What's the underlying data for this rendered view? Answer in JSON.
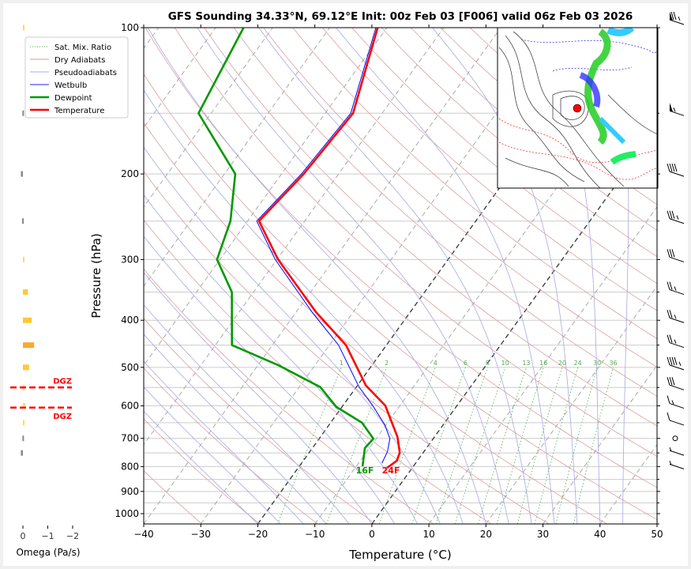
{
  "chart_data": {
    "type": "line",
    "title": "GFS Sounding 34.33°N, 69.12°E Init: 00z Feb 03 [F006] valid 06z Feb 03 2026",
    "xlabel": "Temperature (°C)",
    "ylabel": "Pressure (hPa)",
    "xlim": [
      -40,
      50
    ],
    "ylim": [
      1050,
      100
    ],
    "x_ticks": [
      -40,
      -30,
      -20,
      -10,
      0,
      10,
      20,
      30,
      40,
      50
    ],
    "y_ticks": [
      100,
      200,
      300,
      400,
      500,
      600,
      700,
      800,
      900,
      1000
    ],
    "grid": true,
    "legend_position": "top-left",
    "legend": [
      "Sat. Mix. Ratio",
      "Dry Adiabats",
      "Pseudoadiabats",
      "Wetbulb",
      "Dewpoint",
      "Temperature"
    ],
    "series": [
      {
        "name": "Temperature",
        "color": "#ff0000",
        "pressure": [
          100,
          150,
          200,
          250,
          300,
          385,
          450,
          545,
          599,
          695,
          749,
          778,
          805
        ],
        "values": [
          -61.6,
          -55.1,
          -56.1,
          -58.0,
          -49.8,
          -36.5,
          -27.1,
          -18.5,
          -12.6,
          -6.5,
          -4.1,
          -3.6,
          -4.4
        ]
      },
      {
        "name": "Dewpoint",
        "color": "#009900",
        "pressure": [
          100,
          150,
          200,
          250,
          300,
          350,
          450,
          495,
          549,
          603,
          650,
          701,
          733,
          799
        ],
        "values": [
          -85.1,
          -82.2,
          -68.1,
          -63.0,
          -60.5,
          -53.8,
          -47.1,
          -36.4,
          -26.3,
          -21.0,
          -14.5,
          -10.5,
          -10.8,
          -8.9
        ]
      },
      {
        "name": "Wetbulb",
        "color": "#0000ff",
        "pressure": [
          100,
          150,
          200,
          250,
          300,
          385,
          450,
          549,
          599,
          657,
          701,
          745,
          787
        ],
        "values": [
          -61.9,
          -55.5,
          -56.5,
          -58.4,
          -50.3,
          -37.2,
          -28.4,
          -19.5,
          -14.8,
          -10.2,
          -7.6,
          -6.4,
          -5.9
        ]
      }
    ],
    "surface_labels": {
      "temperature": "24F",
      "dewpoint": "16F"
    },
    "mixing_ratio_labels": [
      "1",
      "2",
      "4",
      "6",
      "8",
      "10",
      "13",
      "16",
      "20",
      "24",
      "30",
      "36"
    ],
    "highlighted_isotherms": [
      -20,
      0
    ],
    "omega": {
      "xlabel": "Omega (Pa/s)",
      "x_ticks": [
        "0",
        "−1",
        "−2"
      ],
      "xlim": [
        0.5,
        -2.2
      ],
      "pressure": [
        100,
        150,
        200,
        250,
        300,
        350,
        400,
        450,
        500,
        550,
        600,
        650,
        700,
        750
      ],
      "values": [
        -0.03,
        0.02,
        0.08,
        0.03,
        -0.02,
        -0.2,
        -0.35,
        -0.45,
        -0.25,
        -0.05,
        -0.1,
        -0.05,
        0.02,
        0.08
      ],
      "dgz_label": "DGZ",
      "dgz_pressures": [
        550,
        605
      ]
    },
    "wind_barbs": {
      "pressure": [
        100,
        150,
        200,
        250,
        300,
        350,
        400,
        450,
        500,
        550,
        600,
        650,
        700,
        750,
        800
      ],
      "speed_kt": [
        75,
        55,
        40,
        35,
        30,
        25,
        25,
        25,
        45,
        30,
        15,
        10,
        0,
        5,
        5
      ]
    }
  }
}
